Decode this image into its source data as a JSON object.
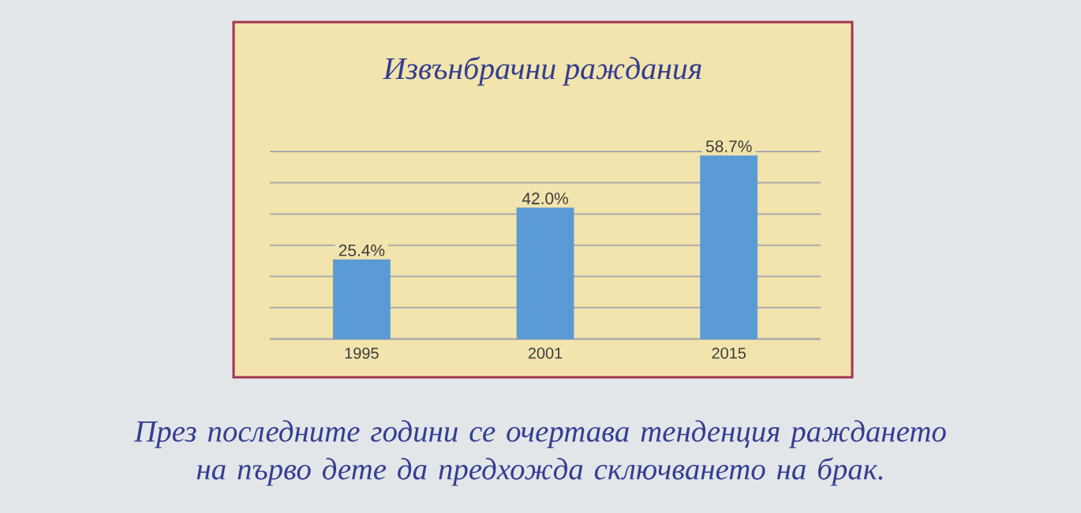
{
  "chart_data": {
    "type": "bar",
    "title": "Извънбрачни раждания",
    "categories": [
      "1995",
      "2001",
      "2015"
    ],
    "values": [
      25.4,
      42.0,
      58.7
    ],
    "value_labels": [
      "25.4%",
      "42.0%",
      "58.7%"
    ],
    "color": "#5b9bd5",
    "tick_labels": "x",
    "grid": "y",
    "annotations": [
      "През последните години се очертава тенденция раждането на първо дете да предхожда сключването на брак."
    ]
  }
}
